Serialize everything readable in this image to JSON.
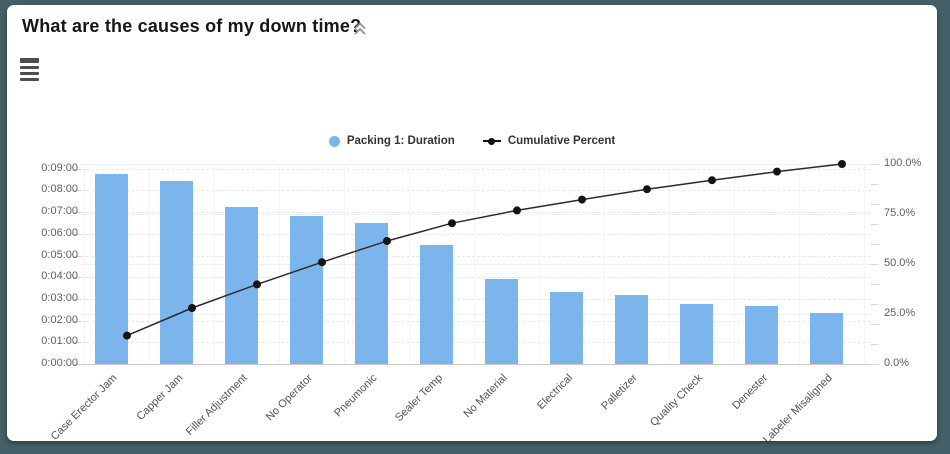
{
  "frame_color": "#455f69",
  "header": {
    "collapse_icon": "chevron-double-up"
  },
  "toolbar": {
    "menu_icon": "chart-menu"
  },
  "chart_data": {
    "type": "bar",
    "subtype": "pareto-bar-with-cumulative-line",
    "title": "What are the causes of my down time?",
    "categories": [
      "Case Erector Jam",
      "Capper Jam",
      "Filler Adjustment",
      "No Operator",
      "Pneumonic",
      "Sealer Temp",
      "No Material",
      "Electrical",
      "Palletizer",
      "Quality Check",
      "Denester",
      "Labeler Misaligned"
    ],
    "series": [
      {
        "name": "Packing 1: Duration",
        "type": "bar",
        "color": "#7cb5ec",
        "values_hms": [
          "0:08:45",
          "0:08:25",
          "0:07:15",
          "0:06:50",
          "0:06:30",
          "0:05:30",
          "0:03:55",
          "0:03:20",
          "0:03:10",
          "0:02:45",
          "0:02:40",
          "0:02:20"
        ],
        "values_minutes": [
          8.75,
          8.42,
          7.25,
          6.83,
          6.5,
          5.5,
          3.92,
          3.33,
          3.17,
          2.75,
          2.67,
          2.33
        ]
      },
      {
        "name": "Cumulative Percent",
        "type": "line",
        "color": "#141414",
        "values_percent": [
          14.2,
          28.0,
          39.8,
          50.9,
          61.5,
          70.4,
          76.8,
          82.2,
          87.4,
          91.9,
          96.2,
          100.0
        ]
      }
    ],
    "y_axis_left": {
      "min": "0:00:00",
      "max": "0:09:00",
      "tick_labels": [
        "0:00:00",
        "0:01:00",
        "0:02:00",
        "0:03:00",
        "0:04:00",
        "0:05:00",
        "0:06:00",
        "0:07:00",
        "0:08:00",
        "0:09:00"
      ]
    },
    "y_axis_right": {
      "min": 0,
      "max": 100,
      "tick_labels": [
        "0.0%",
        "25.0%",
        "50.0%",
        "75.0%",
        "100.0%"
      ]
    },
    "legend_position": "top-center",
    "grid": true
  }
}
